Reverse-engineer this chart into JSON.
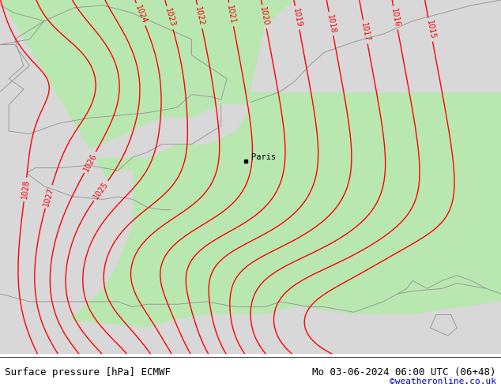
{
  "title_left": "Surface pressure [hPa] ECMWF",
  "title_right": "Mo 03-06-2024 06:00 UTC (06+48)",
  "credit": "©weatheronline.co.uk",
  "bg_color": "#ffffff",
  "land_color": "#b8e8b0",
  "sea_color": "#d8d8d8",
  "contour_color": "#ff0000",
  "coast_color": "#999999",
  "text_color": "#000000",
  "credit_color": "#0000cc",
  "paris_label": "Paris",
  "paris_x": 2.35,
  "paris_y": 48.85,
  "xlim": [
    -6.0,
    11.0
  ],
  "ylim": [
    41.5,
    55.0
  ],
  "pressure_levels": [
    1015,
    1016,
    1017,
    1018,
    1019,
    1020,
    1021,
    1022,
    1023,
    1024,
    1025,
    1026,
    1027,
    1028
  ],
  "footer_fontsize": 9,
  "label_fontsize": 7
}
